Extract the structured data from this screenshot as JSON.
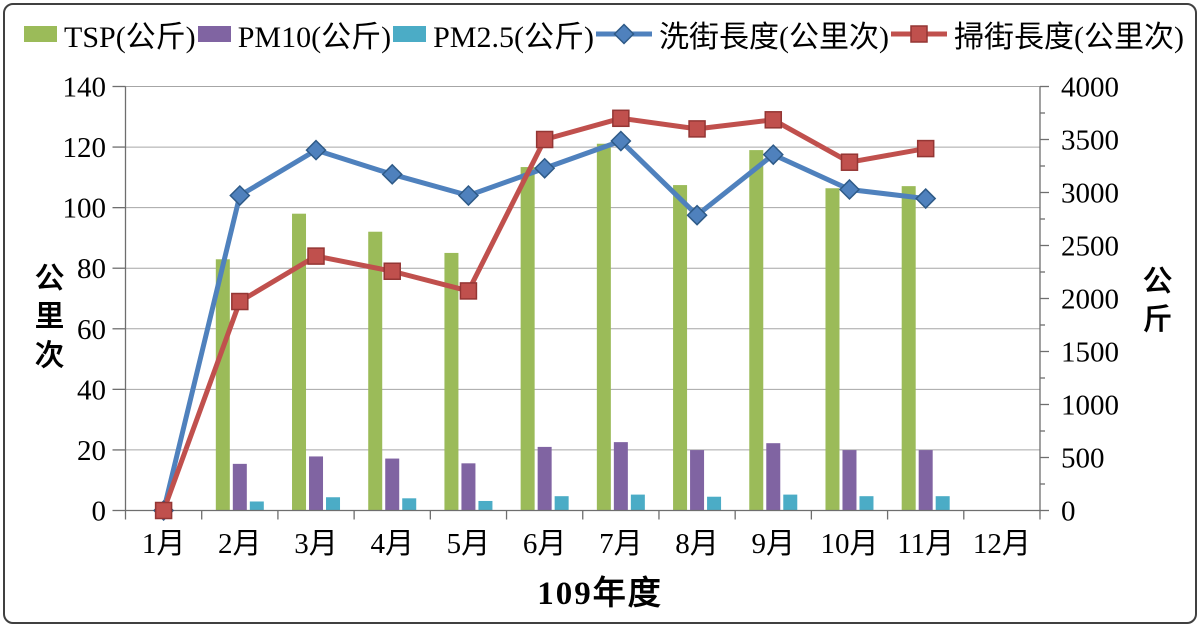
{
  "chart_data": {
    "type": "combo-bar-line",
    "x_title": "109年度",
    "categories": [
      "1月",
      "2月",
      "3月",
      "4月",
      "5月",
      "6月",
      "7月",
      "8月",
      "9月",
      "10月",
      "11月",
      "12月"
    ],
    "bar_series": [
      {
        "key": "tsp",
        "name": "TSP(公斤)",
        "color": "#9BBB59",
        "axis": "right",
        "values": [
          null,
          2370,
          2800,
          2630,
          2430,
          3240,
          3460,
          3070,
          3400,
          3040,
          3060,
          null
        ]
      },
      {
        "key": "pm10",
        "name": "PM10(公斤)",
        "color": "#8064A2",
        "axis": "right",
        "values": [
          null,
          440,
          510,
          490,
          445,
          600,
          645,
          570,
          635,
          570,
          570,
          null
        ]
      },
      {
        "key": "pm25",
        "name": "PM2.5(公斤)",
        "color": "#4BACC6",
        "axis": "right",
        "values": [
          null,
          85,
          125,
          115,
          90,
          135,
          150,
          130,
          150,
          135,
          135,
          null
        ]
      }
    ],
    "line_series": [
      {
        "key": "wash",
        "name": "洗街長度(公里次)",
        "color": "#4F81BD",
        "edge": "#2E5A87",
        "marker": "diamond",
        "axis": "left",
        "values": [
          0,
          104,
          119,
          111,
          104,
          113,
          122,
          97.5,
          117.5,
          106,
          103,
          null
        ]
      },
      {
        "key": "sweep",
        "name": "掃街長度(公里次)",
        "color": "#C0504D",
        "edge": "#943634",
        "marker": "square",
        "axis": "left",
        "values": [
          0,
          69,
          84,
          79,
          72.5,
          122.5,
          129.5,
          126,
          129,
          115,
          119.5,
          null
        ]
      }
    ],
    "left_axis": {
      "title": "公里次",
      "min": 0,
      "max": 140,
      "step": 20
    },
    "right_axis": {
      "title": "公斤",
      "min": 0,
      "max": 4000,
      "step": 500,
      "minor_step": 250
    },
    "grid": true,
    "legend_position": "top"
  },
  "style": {
    "grid_color": "#A6A6A6",
    "axis_color": "#6E6E6E",
    "tick_color": "#6E6E6E",
    "border_color": "#404040",
    "background": "#FFFFFF"
  }
}
